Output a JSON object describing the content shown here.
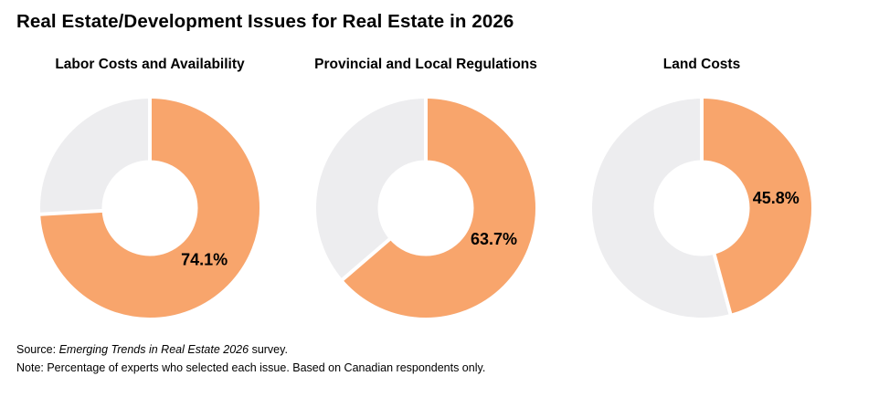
{
  "title": "Real Estate/Development Issues for Real Estate in 2026",
  "colors": {
    "selected": "#F8A56C",
    "remainder": "#EDEDEF",
    "separator": "#FFFFFF",
    "label_text": "#000000"
  },
  "chart_data": [
    {
      "type": "pie",
      "subtype": "donut",
      "title": "Labor Costs and Availability",
      "labels": [
        "Selected",
        "Not selected"
      ],
      "values": [
        74.1,
        25.9
      ],
      "data_label": "74.1%",
      "colors": [
        "#F8A56C",
        "#EDEDEF"
      ],
      "start_angle_deg": 0,
      "direction": "clockwise",
      "legend": "none"
    },
    {
      "type": "pie",
      "subtype": "donut",
      "title": "Provincial and Local Regulations",
      "labels": [
        "Selected",
        "Not selected"
      ],
      "values": [
        63.7,
        36.3
      ],
      "data_label": "63.7%",
      "colors": [
        "#F8A56C",
        "#EDEDEF"
      ],
      "start_angle_deg": 0,
      "direction": "clockwise",
      "legend": "none"
    },
    {
      "type": "pie",
      "subtype": "donut",
      "title": "Land Costs",
      "labels": [
        "Selected",
        "Not selected"
      ],
      "values": [
        45.8,
        54.2
      ],
      "data_label": "45.8%",
      "colors": [
        "#F8A56C",
        "#EDEDEF"
      ],
      "start_angle_deg": 0,
      "direction": "clockwise",
      "legend": "none"
    }
  ],
  "footer": {
    "source_prefix": "Source: ",
    "source_italic": "Emerging Trends in Real Estate 2026",
    "source_suffix": " survey.",
    "note": "Note: Percentage of experts who selected each issue. Based on Canadian respondents only."
  }
}
